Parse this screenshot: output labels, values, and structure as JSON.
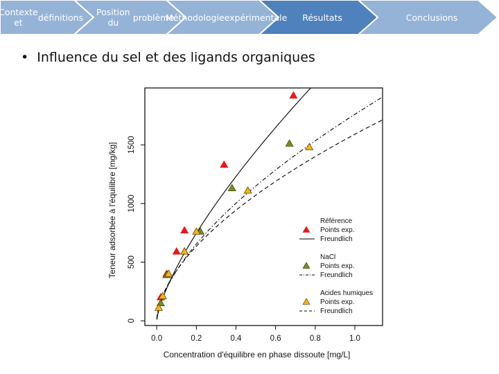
{
  "nav": {
    "tabs": [
      {
        "label_lines": [
          "Contexte et",
          "définitions"
        ],
        "active": false
      },
      {
        "label_lines": [
          "Position du",
          "problème"
        ],
        "active": false
      },
      {
        "label_lines": [
          "Méthodologie",
          "expérimentale"
        ],
        "active": false
      },
      {
        "label_lines": [
          "Résultats"
        ],
        "active": true
      },
      {
        "label_lines": [
          "Conclusions"
        ],
        "active": false
      }
    ],
    "colors": {
      "inactive": "#95b3d7",
      "active": "#4f81bd"
    }
  },
  "bullet_text": "Influence du sel et des ligands organiques",
  "chart_data": {
    "type": "scatter",
    "xlabel": "Concentration d'équilibre en phase dissoute [mg/L]",
    "ylabel": "Teneur adsorbée à l'équilibre [mg/kg]",
    "xlim": [
      -0.06,
      1.14
    ],
    "ylim": [
      -40,
      1985
    ],
    "xticks": [
      "0.0",
      "0.2",
      "0.4",
      "0.6",
      "0.8",
      "1.0"
    ],
    "yticks": [
      "0",
      "500",
      "1000",
      "1500"
    ],
    "series": [
      {
        "group": "Référence",
        "points_label": "Points exp.",
        "fit_label": "Freundlich",
        "marker_color": "#e31a1c",
        "marker_stroke": "#e31a1c",
        "line_style": "solid",
        "freundlich": {
          "K": 2380,
          "n": 0.72
        },
        "points": [
          [
            0.02,
            200
          ],
          [
            0.05,
            400
          ],
          [
            0.1,
            590
          ],
          [
            0.14,
            770
          ],
          [
            0.34,
            1330
          ],
          [
            0.69,
            1920
          ]
        ]
      },
      {
        "group": "NaCl",
        "points_label": "Points exp.",
        "fit_label": "Freundlich",
        "marker_color": "#7a8c1f",
        "marker_stroke": "#3a4a10",
        "line_style": "dashdot",
        "freundlich": {
          "K": 1760,
          "n": 0.615
        },
        "points": [
          [
            0.02,
            150
          ],
          [
            0.05,
            390
          ],
          [
            0.14,
            590
          ],
          [
            0.22,
            760
          ],
          [
            0.38,
            1130
          ],
          [
            0.67,
            1510
          ]
        ]
      },
      {
        "group": "Acides humiques",
        "points_label": "Points exp.",
        "fit_label": "Freundlich",
        "marker_color": "#f6b21c",
        "marker_stroke": "#6b4a00",
        "line_style": "dashed",
        "freundlich": {
          "K": 1590,
          "n": 0.57
        },
        "points": [
          [
            0.01,
            110
          ],
          [
            0.03,
            210
          ],
          [
            0.06,
            400
          ],
          [
            0.14,
            590
          ],
          [
            0.2,
            760
          ],
          [
            0.46,
            1110
          ],
          [
            0.77,
            1480
          ]
        ]
      }
    ],
    "legend_position": "bottom-right"
  }
}
